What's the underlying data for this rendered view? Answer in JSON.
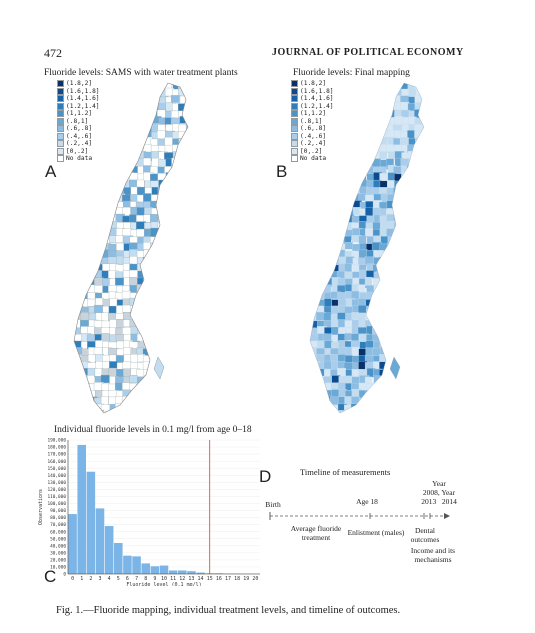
{
  "header": {
    "page_number": "472",
    "journal": "JOURNAL OF POLITICAL ECONOMY"
  },
  "panel_a": {
    "title": "Fluoride levels: SAMS with water treatment plants",
    "letter": "A",
    "legend": [
      "(1.8,2]",
      "(1.6,1.8]",
      "(1.4,1.6]",
      "(1.2,1.4]",
      "(1,1.2]",
      "(.8,1]",
      "(.6,.8]",
      "(.4,.6]",
      "(.2,.4]",
      "[0,.2]",
      "No data"
    ]
  },
  "panel_b": {
    "title": "Fluoride levels: Final mapping",
    "letter": "B",
    "legend": [
      "(1.8,2]",
      "(1.6,1.8]",
      "(1.4,1.6]",
      "(1.2,1.4]",
      "(1,1.2]",
      "(.8,1]",
      "(.6,.8]",
      "(.4,.6]",
      "(.2,.4]",
      "[0,.2]",
      "No data"
    ]
  },
  "legend_colors": [
    "#08306b",
    "#0b4a8f",
    "#1562a8",
    "#2e7ebc",
    "#4a93c9",
    "#6aa8d6",
    "#8dbde2",
    "#a9cdea",
    "#c2dcf0",
    "#d6e7f6",
    "#ffffff"
  ],
  "panel_c": {
    "title": "Individual fluoride levels in 0.1 mg/l from age 0–18",
    "letter": "C"
  },
  "chart_data": {
    "type": "bar",
    "title": "Individual fluoride levels in 0.1 mg/l from age 0–18",
    "xlabel": "Fluoride level (0.1 mg/l)",
    "ylabel": "Observations",
    "categories": [
      "0",
      "1",
      "2",
      "3",
      "4",
      "5",
      "6",
      "7",
      "8",
      "9",
      "10",
      "11",
      "12",
      "13",
      "14",
      "15",
      "16",
      "17",
      "18",
      "19",
      "20"
    ],
    "values": [
      85000,
      183000,
      145000,
      93000,
      68000,
      44000,
      26000,
      25000,
      15000,
      11000,
      12000,
      5000,
      5000,
      4000,
      2000,
      1000,
      1000,
      500,
      500,
      300,
      300
    ],
    "ylim": [
      0,
      190000
    ],
    "yticks": [
      "0",
      "10,000",
      "20,000",
      "30,000",
      "40,000",
      "50,000",
      "60,000",
      "70,000",
      "80,000",
      "90,000",
      "100,000",
      "110,000",
      "120,000",
      "130,000",
      "140,000",
      "150,000",
      "160,000",
      "170,000",
      "180,000",
      "190,000"
    ],
    "vline_at": 15,
    "bar_color": "#7bb4e6",
    "vline_color": "#d04040"
  },
  "panel_d": {
    "letter": "D",
    "title": "Timeline of measurements",
    "labels": {
      "birth": "Birth",
      "age18": "Age 18",
      "years": "Year 2008, Year 2014 2013",
      "year_line1": "Year",
      "year_line2": "2008, Year",
      "year_line3": "2013   2014",
      "treatment": "Average fluoride treatment",
      "enlistment": "Enlistment (males)",
      "dental": "Dental outcomes",
      "income": "Income and its mechanisms"
    }
  },
  "caption": "Fig. 1.—Fluoride mapping, individual treatment levels, and timeline of outcomes."
}
